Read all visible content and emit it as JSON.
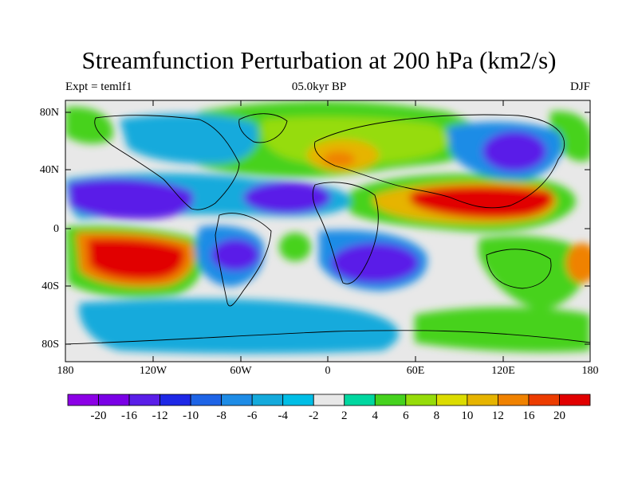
{
  "title": "Streamfunction Perturbation at 200 hPa (km2/s)",
  "left_string": "Expt = temlf1",
  "center_string": "05.0kyr BP",
  "right_string": "DJF",
  "lat_labels": [
    "80N",
    "40N",
    "0",
    "40S",
    "80S"
  ],
  "lon_labels": [
    "180",
    "120W",
    "60W",
    "0",
    "60E",
    "120E",
    "180"
  ],
  "colorbar": {
    "labels": [
      "-20",
      "-16",
      "-12",
      "-10",
      "-8",
      "-6",
      "-4",
      "-2",
      "2",
      "4",
      "6",
      "8",
      "10",
      "12",
      "16",
      "20"
    ],
    "colors": [
      "#8c00e6",
      "#7a00e6",
      "#5a1ee8",
      "#1e28e6",
      "#1e64e6",
      "#1e8ce6",
      "#14aadc",
      "#00bee6",
      "#e8e8e8",
      "#00d7a0",
      "#46d21e",
      "#96dc0a",
      "#dcdc00",
      "#e6b400",
      "#f08200",
      "#ec3c00",
      "#e10000"
    ]
  }
}
